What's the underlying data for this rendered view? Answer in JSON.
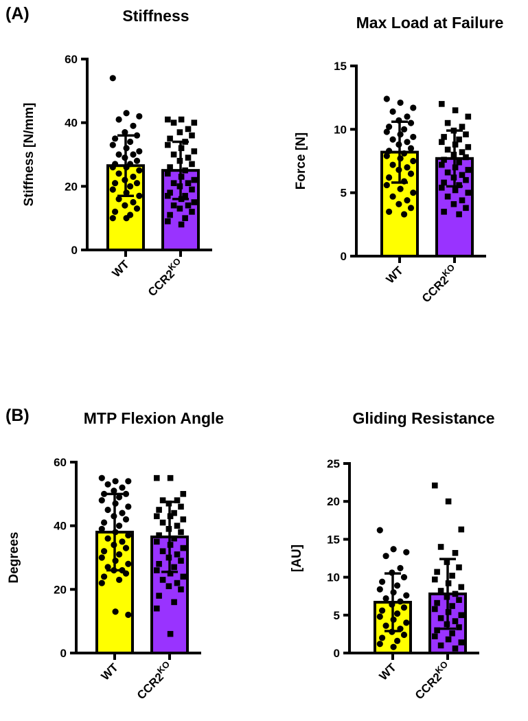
{
  "figure": {
    "panel_labels": [
      "(A)",
      "(B)"
    ]
  },
  "colors": {
    "wt_bar": "#ffff00",
    "ko_bar": "#9933ff",
    "outline": "#000000"
  },
  "chart_data": [
    {
      "type": "bar",
      "panel": "A",
      "title": "Stiffness",
      "ylabel": "Stiffness [N/mm]",
      "ylim": [
        0,
        60
      ],
      "yticks": [
        "0",
        "20",
        "40",
        "60"
      ],
      "categories": [
        "WT",
        "CCR2KO"
      ],
      "category_labels": [
        {
          "base": "WT",
          "sup": ""
        },
        {
          "base": "CCR2",
          "sup": "KO"
        }
      ],
      "series": [
        {
          "name": "WT",
          "marker": "circle",
          "mean": 26.5,
          "sd": 9.5,
          "points": [
            54,
            43,
            42,
            41,
            39,
            37,
            36,
            35,
            34,
            33,
            32,
            31,
            30,
            30,
            29,
            28,
            27,
            27,
            26,
            26,
            25,
            24,
            23,
            22,
            21,
            21,
            20,
            19,
            18,
            17,
            16,
            15,
            14,
            13,
            12,
            11,
            10,
            10
          ]
        },
        {
          "name": "CCR2KO",
          "marker": "square",
          "mean": 25,
          "sd": 9,
          "points": [
            41,
            41,
            40,
            40,
            38,
            37,
            36,
            35,
            34,
            33,
            32,
            31,
            30,
            29,
            28,
            27,
            26,
            25,
            24,
            23,
            22,
            21,
            21,
            20,
            19,
            18,
            17,
            17,
            16,
            15,
            14,
            14,
            13,
            12,
            11,
            10,
            9,
            8
          ]
        }
      ]
    },
    {
      "type": "bar",
      "panel": "A",
      "title": "Max Load at Failure",
      "ylabel": "Force [N]",
      "ylim": [
        0,
        15
      ],
      "yticks": [
        "0",
        "5",
        "10",
        "15"
      ],
      "categories": [
        "WT",
        "CCR2KO"
      ],
      "category_labels": [
        {
          "base": "WT",
          "sup": ""
        },
        {
          "base": "CCR2",
          "sup": "KO"
        }
      ],
      "series": [
        {
          "name": "WT",
          "marker": "circle",
          "mean": 8.2,
          "sd": 2.4,
          "points": [
            12.4,
            12.1,
            11.7,
            11.4,
            11.0,
            10.7,
            10.5,
            10.2,
            10.0,
            9.8,
            9.6,
            9.4,
            9.2,
            9.0,
            8.8,
            8.5,
            8.3,
            8.1,
            7.9,
            7.7,
            7.5,
            7.2,
            7.0,
            6.8,
            6.5,
            6.2,
            5.9,
            5.6,
            5.3,
            5.0,
            4.7,
            4.4,
            4.1,
            3.8,
            3.5,
            3.3
          ]
        },
        {
          "name": "CCR2KO",
          "marker": "square",
          "mean": 7.7,
          "sd": 2.2,
          "points": [
            12.0,
            11.5,
            11.0,
            10.5,
            10.2,
            9.9,
            9.6,
            9.4,
            9.2,
            9.0,
            8.8,
            8.6,
            8.4,
            8.2,
            8.0,
            7.8,
            7.6,
            7.4,
            7.2,
            7.0,
            6.8,
            6.6,
            6.4,
            6.2,
            6.0,
            5.8,
            5.6,
            5.4,
            5.2,
            5.0,
            4.7,
            4.4,
            4.1,
            3.8,
            3.5,
            3.3
          ]
        }
      ]
    },
    {
      "type": "bar",
      "panel": "B",
      "title": "MTP Flexion Angle",
      "ylabel": "Degrees",
      "ylim": [
        0,
        60
      ],
      "yticks": [
        "0",
        "20",
        "40",
        "60"
      ],
      "categories": [
        "WT",
        "CCR2KO"
      ],
      "category_labels": [
        {
          "base": "WT",
          "sup": ""
        },
        {
          "base": "CCR2",
          "sup": "KO"
        }
      ],
      "series": [
        {
          "name": "WT",
          "marker": "circle",
          "mean": 38,
          "sd": 12,
          "points": [
            55,
            54,
            54,
            53,
            52,
            51,
            50,
            50,
            49,
            48,
            47,
            46,
            45,
            44,
            43,
            42,
            41,
            40,
            39,
            38,
            37,
            36,
            35,
            34,
            33,
            32,
            31,
            30,
            29,
            28,
            27,
            26,
            26,
            25,
            24,
            23,
            22,
            13,
            12
          ]
        },
        {
          "name": "CCR2KO",
          "marker": "square",
          "mean": 36.5,
          "sd": 11,
          "points": [
            55,
            55,
            50,
            48,
            48,
            47,
            46,
            45,
            44,
            43,
            43,
            42,
            41,
            40,
            39,
            38,
            37,
            36,
            35,
            34,
            33,
            32,
            31,
            30,
            29,
            28,
            27,
            26,
            25,
            24,
            23,
            22,
            21,
            20,
            18,
            16,
            14,
            6
          ]
        }
      ]
    },
    {
      "type": "bar",
      "panel": "B",
      "title": "Gliding Resistance",
      "ylabel": "[AU]",
      "ylim": [
        0,
        25
      ],
      "yticks": [
        "0",
        "5",
        "10",
        "15",
        "20",
        "25"
      ],
      "categories": [
        "WT",
        "CCR2KO"
      ],
      "category_labels": [
        {
          "base": "WT",
          "sup": ""
        },
        {
          "base": "CCR2",
          "sup": "KO"
        }
      ],
      "series": [
        {
          "name": "WT",
          "marker": "circle",
          "mean": 6.7,
          "sd": 3.8,
          "points": [
            16.2,
            13.7,
            13.3,
            12.8,
            11.2,
            10.6,
            10.0,
            9.4,
            8.9,
            8.4,
            8.0,
            7.6,
            7.2,
            6.8,
            6.4,
            6.0,
            5.6,
            5.2,
            4.8,
            4.4,
            4.0,
            3.6,
            3.2,
            2.8,
            2.4,
            2.0,
            1.6,
            1.2,
            0.8
          ]
        },
        {
          "name": "CCR2KO",
          "marker": "square",
          "mean": 7.8,
          "sd": 4.6,
          "points": [
            22.1,
            20.0,
            16.3,
            14.0,
            13.2,
            12.0,
            11.3,
            10.7,
            10.2,
            9.7,
            9.2,
            8.7,
            8.2,
            7.8,
            7.4,
            7.0,
            6.6,
            6.2,
            5.8,
            5.4,
            5.0,
            4.6,
            4.2,
            3.8,
            3.4,
            3.0,
            2.6,
            2.2,
            1.8,
            1.4,
            1.0,
            0.6
          ]
        }
      ]
    }
  ]
}
